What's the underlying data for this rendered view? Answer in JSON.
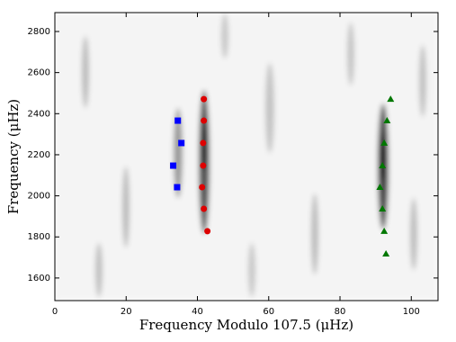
{
  "chart_data": {
    "type": "scatter",
    "xlabel": "Frequency Modulo 107.5 (μHz)",
    "ylabel": "Frequency (μHz)",
    "xlim": [
      0,
      107.5
    ],
    "xticks": [
      0,
      20,
      40,
      60,
      80,
      100
    ],
    "ylim": [
      1490,
      2892
    ],
    "yticks": [
      1600,
      1800,
      2000,
      2200,
      2400,
      2600,
      2800
    ],
    "series": [
      {
        "color": "#0000ff",
        "marker": "s",
        "x": [
          34.5,
          35.5,
          33.2,
          34.3
        ],
        "values": [
          2366,
          2257,
          2147,
          2042
        ]
      },
      {
        "color": "#dd0000",
        "marker": "o",
        "x": [
          41.8,
          41.8,
          41.6,
          41.6,
          41.3,
          41.8,
          42.8
        ],
        "values": [
          2471,
          2366,
          2257,
          2147,
          2042,
          1937,
          1828
        ]
      },
      {
        "color": "#007700",
        "marker": "^",
        "x": [
          94.2,
          93.2,
          92.4,
          91.9,
          91.2,
          91.9,
          92.4,
          92.9
        ],
        "values": [
          2471,
          2366,
          2257,
          2147,
          2042,
          1937,
          1828,
          1718
        ]
      }
    ]
  }
}
